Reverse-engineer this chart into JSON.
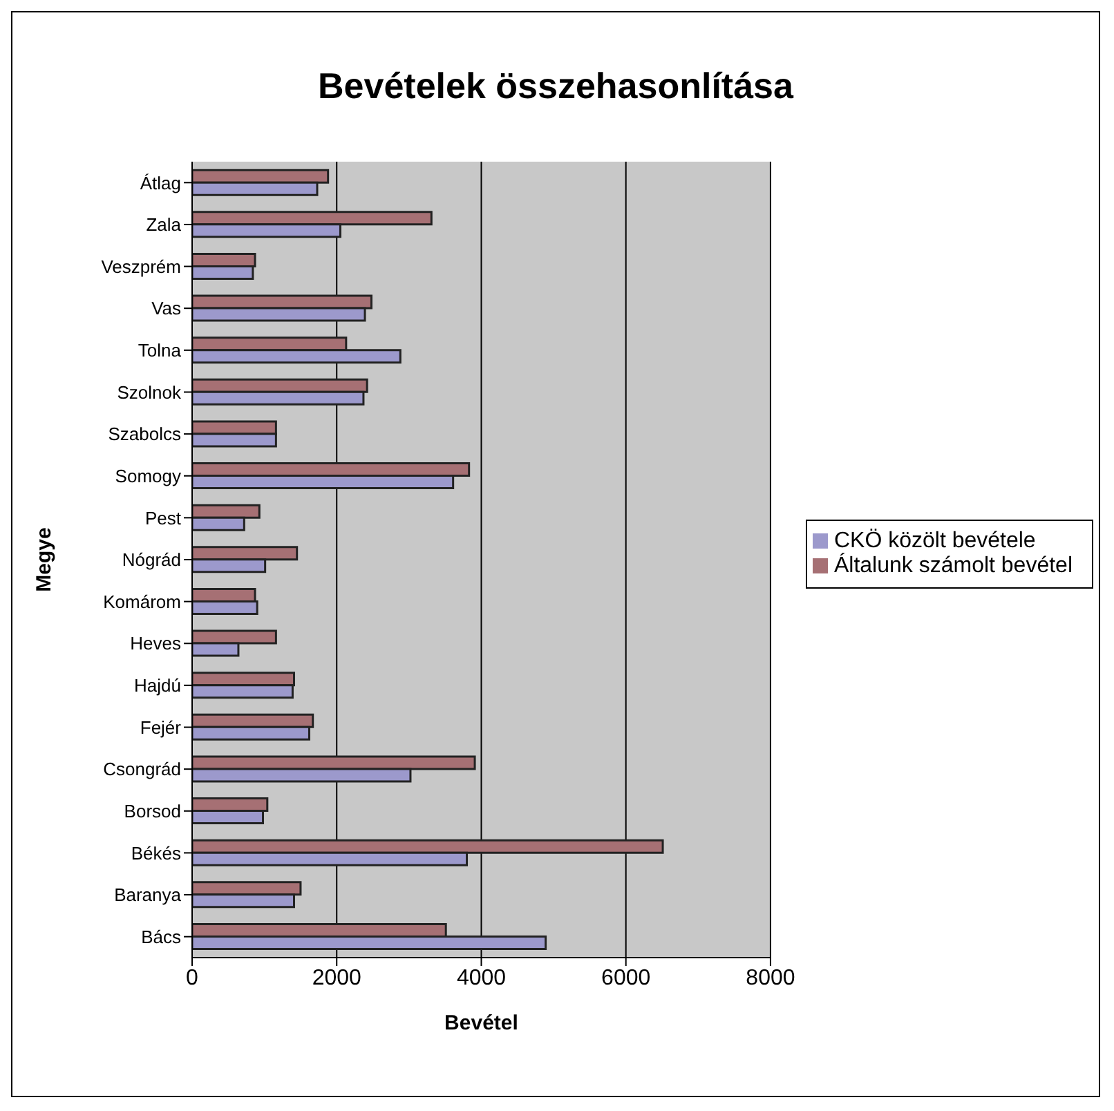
{
  "chart_data": {
    "type": "bar",
    "orientation": "horizontal",
    "title": "Bevételek összehasonlítása",
    "xlabel": "Bevétel",
    "ylabel": "Megye",
    "categories": [
      "Átlag",
      "Zala",
      "Veszprém",
      "Vas",
      "Tolna",
      "Szolnok",
      "Szabolcs",
      "Somogy",
      "Pest",
      "Nógrád",
      "Komárom",
      "Heves",
      "Hajdú",
      "Fejér",
      "Csongrád",
      "Borsod",
      "Békés",
      "Baranya",
      "Bács"
    ],
    "series": [
      {
        "name": "Általunk számolt bevétel",
        "color": "#a67074",
        "values": [
          1880,
          3310,
          870,
          2480,
          2130,
          2420,
          1160,
          3830,
          930,
          1450,
          870,
          1160,
          1410,
          1670,
          3910,
          1040,
          6510,
          1500,
          3510
        ]
      },
      {
        "name": "CKÖ közölt bevétele",
        "color": "#9c99cc",
        "values": [
          1730,
          2050,
          840,
          2390,
          2880,
          2370,
          1160,
          3610,
          720,
          1010,
          900,
          640,
          1390,
          1620,
          3020,
          980,
          3800,
          1410,
          4890
        ]
      }
    ],
    "xlim": [
      0,
      8000
    ],
    "xticks": [
      0,
      2000,
      4000,
      6000,
      8000
    ],
    "grid": "x",
    "legend": "right"
  }
}
